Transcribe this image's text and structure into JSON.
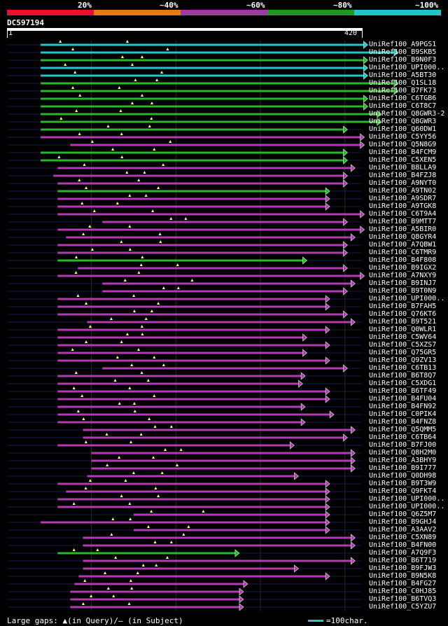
{
  "query": {
    "id": "DC597194",
    "ruler_start": "1",
    "ruler_end": "420",
    "length": 420
  },
  "identity_legend": [
    {
      "label": "20%",
      "color": "#e8102e"
    },
    {
      "label": "~40%",
      "color": "#e67a12"
    },
    {
      "label": "~60%",
      "color": "#a03aa0"
    },
    {
      "label": "~80%",
      "color": "#1f9a1f"
    },
    {
      "label": "~100%",
      "color": "#21c7c7"
    }
  ],
  "colors": {
    "cyan": "#21c7c7",
    "green": "#2ab52a",
    "purple": "#b23ab2",
    "gap": "#ffff80",
    "grid": "#2a2a2a"
  },
  "footer": {
    "gaps_text": "Large gaps: ▲(in Query)/— (in Subject)",
    "scale_text": "=100char."
  },
  "chart_data": {
    "type": "alignment-overview",
    "x_range": [
      1,
      420
    ],
    "hits": [
      {
        "name": "UniRef100_A9PGS1",
        "start": 40,
        "end": 427,
        "color": "cyan"
      },
      {
        "name": "UniRef100_B9SKB5",
        "start": 40,
        "end": 463,
        "color": "cyan"
      },
      {
        "name": "UniRef100_B9N0F3",
        "start": 40,
        "end": 427,
        "color": "green"
      },
      {
        "name": "UniRef100_UPI000..",
        "start": 40,
        "end": 427,
        "color": "cyan"
      },
      {
        "name": "UniRef100_A5BT30",
        "start": 40,
        "end": 427,
        "color": "cyan"
      },
      {
        "name": "UniRef100_Q1SL18",
        "start": 40,
        "end": 463,
        "color": "green"
      },
      {
        "name": "UniRef100_B7FK73",
        "start": 40,
        "end": 463,
        "color": "green"
      },
      {
        "name": "UniRef100_C6TGB6",
        "start": 40,
        "end": 427,
        "color": "green"
      },
      {
        "name": "UniRef100_C6T8C7",
        "start": 40,
        "end": 427,
        "color": "green"
      },
      {
        "name": "UniRef100_Q8GWR3-2",
        "start": 40,
        "end": 443,
        "color": "green"
      },
      {
        "name": "UniRef100_Q8GWR3",
        "start": 40,
        "end": 443,
        "color": "green"
      },
      {
        "name": "UniRef100_Q60DW1",
        "start": 40,
        "end": 403,
        "color": "green"
      },
      {
        "name": "UniRef100_C5YY56",
        "start": 40,
        "end": 423,
        "color": "purple"
      },
      {
        "name": "UniRef100_Q5N8G9",
        "start": 75,
        "end": 423,
        "color": "purple"
      },
      {
        "name": "UniRef100_B4FCM9",
        "start": 40,
        "end": 403,
        "color": "green"
      },
      {
        "name": "UniRef100_C5XEN5",
        "start": 40,
        "end": 403,
        "color": "green"
      },
      {
        "name": "UniRef100_B8LLA9",
        "start": 60,
        "end": 412,
        "color": "purple"
      },
      {
        "name": "UniRef100_B4FZJ8",
        "start": 55,
        "end": 403,
        "color": "purple"
      },
      {
        "name": "UniRef100_A9NYT0",
        "start": 60,
        "end": 403,
        "color": "purple"
      },
      {
        "name": "UniRef100_A9TN02",
        "start": 60,
        "end": 382,
        "color": "green"
      },
      {
        "name": "UniRef100_A9SDR7",
        "start": 60,
        "end": 382,
        "color": "purple"
      },
      {
        "name": "UniRef100_A9TGK8",
        "start": 60,
        "end": 382,
        "color": "purple"
      },
      {
        "name": "UniRef100_C6T9A4",
        "start": 60,
        "end": 423,
        "color": "purple"
      },
      {
        "name": "UniRef100_B9MTT7",
        "start": 113,
        "end": 403,
        "color": "purple"
      },
      {
        "name": "UniRef100_A5BIR0",
        "start": 60,
        "end": 423,
        "color": "purple"
      },
      {
        "name": "UniRef100_Q8GYR4",
        "start": 70,
        "end": 412,
        "color": "purple"
      },
      {
        "name": "UniRef100_A7QBW1",
        "start": 60,
        "end": 403,
        "color": "purple"
      },
      {
        "name": "UniRef100_C6TMR9",
        "start": 60,
        "end": 403,
        "color": "purple"
      },
      {
        "name": "UniRef100_B4F808",
        "start": 60,
        "end": 355,
        "color": "green"
      },
      {
        "name": "UniRef100_B9IGX2",
        "start": 84,
        "end": 403,
        "color": "purple"
      },
      {
        "name": "UniRef100_A7NXY9",
        "start": 60,
        "end": 423,
        "color": "purple"
      },
      {
        "name": "UniRef100_B9INJ7",
        "start": 113,
        "end": 412,
        "color": "purple"
      },
      {
        "name": "UniRef100_B9T0N9",
        "start": 113,
        "end": 403,
        "color": "purple"
      },
      {
        "name": "UniRef100_UPI000..",
        "start": 60,
        "end": 382,
        "color": "purple"
      },
      {
        "name": "UniRef100_B7FAH5",
        "start": 60,
        "end": 382,
        "color": "purple"
      },
      {
        "name": "UniRef100_Q76KT6",
        "start": 60,
        "end": 403,
        "color": "purple"
      },
      {
        "name": "UniRef100_B9T521",
        "start": 95,
        "end": 412,
        "color": "purple"
      },
      {
        "name": "UniRef100_Q0WLR1",
        "start": 60,
        "end": 382,
        "color": "purple"
      },
      {
        "name": "UniRef100_C5WV64",
        "start": 60,
        "end": 355,
        "color": "purple"
      },
      {
        "name": "UniRef100_C5XZS7",
        "start": 60,
        "end": 382,
        "color": "purple"
      },
      {
        "name": "UniRef100_Q75GR5",
        "start": 60,
        "end": 355,
        "color": "purple"
      },
      {
        "name": "UniRef100_Q9ZV13",
        "start": 60,
        "end": 382,
        "color": "purple"
      },
      {
        "name": "UniRef100_C6TB13",
        "start": 113,
        "end": 403,
        "color": "purple"
      },
      {
        "name": "UniRef100_B6T8Q7",
        "start": 60,
        "end": 353,
        "color": "purple"
      },
      {
        "name": "UniRef100_C5XDG1",
        "start": 60,
        "end": 350,
        "color": "purple"
      },
      {
        "name": "UniRef100_B6TF49",
        "start": 60,
        "end": 382,
        "color": "purple"
      },
      {
        "name": "UniRef100_B4FU04",
        "start": 60,
        "end": 382,
        "color": "purple"
      },
      {
        "name": "UniRef100_B4FN92",
        "start": 60,
        "end": 353,
        "color": "purple"
      },
      {
        "name": "UniRef100_C0PIK4",
        "start": 60,
        "end": 387,
        "color": "purple"
      },
      {
        "name": "UniRef100_B4FNZ8",
        "start": 60,
        "end": 353,
        "color": "purple"
      },
      {
        "name": "UniRef100_Q5QMM5",
        "start": 90,
        "end": 412,
        "color": "purple"
      },
      {
        "name": "UniRef100_C6TB64",
        "start": 90,
        "end": 403,
        "color": "purple"
      },
      {
        "name": "UniRef100_B7FJ00",
        "start": 60,
        "end": 340,
        "color": "purple"
      },
      {
        "name": "UniRef100_Q8H2M0",
        "start": 100,
        "end": 412,
        "color": "purple"
      },
      {
        "name": "UniRef100_A3BHY9",
        "start": 100,
        "end": 412,
        "color": "purple"
      },
      {
        "name": "UniRef100_B9I777",
        "start": 100,
        "end": 412,
        "color": "purple"
      },
      {
        "name": "UniRef100_Q0DH98",
        "start": 95,
        "end": 345,
        "color": "purple"
      },
      {
        "name": "UniRef100_B9T3W9",
        "start": 60,
        "end": 382,
        "color": "purple"
      },
      {
        "name": "UniRef100_Q9FKT4",
        "start": 70,
        "end": 382,
        "color": "purple"
      },
      {
        "name": "UniRef100_UPI000..",
        "start": 60,
        "end": 382,
        "color": "purple"
      },
      {
        "name": "UniRef100_UPI000..",
        "start": 60,
        "end": 382,
        "color": "purple"
      },
      {
        "name": "UniRef100_Q6Z5M7",
        "start": 150,
        "end": 382,
        "color": "purple"
      },
      {
        "name": "UniRef100_B9GHJ4",
        "start": 40,
        "end": 382,
        "color": "purple"
      },
      {
        "name": "UniRef100_A3AAV2",
        "start": 150,
        "end": 382,
        "color": "purple"
      },
      {
        "name": "UniRef100_C5XN89",
        "start": 90,
        "end": 412,
        "color": "purple"
      },
      {
        "name": "UniRef100_B4FN00",
        "start": 90,
        "end": 412,
        "color": "purple"
      },
      {
        "name": "UniRef100_A7Q9F3",
        "start": 60,
        "end": 275,
        "color": "green"
      },
      {
        "name": "UniRef100_B6T719",
        "start": 90,
        "end": 412,
        "color": "purple"
      },
      {
        "name": "UniRef100_B9FJW3",
        "start": 90,
        "end": 345,
        "color": "purple"
      },
      {
        "name": "UniRef100_B9N5K8",
        "start": 85,
        "end": 382,
        "color": "purple"
      },
      {
        "name": "UniRef100_B4FG27",
        "start": 80,
        "end": 285,
        "color": "purple"
      },
      {
        "name": "UniRef100_C0HJ85",
        "start": 75,
        "end": 280,
        "color": "purple"
      },
      {
        "name": "UniRef100_B6TVQ3",
        "start": 75,
        "end": 280,
        "color": "purple"
      },
      {
        "name": "UniRef100_C5YZU7",
        "start": 75,
        "end": 280,
        "color": "purple"
      }
    ]
  }
}
